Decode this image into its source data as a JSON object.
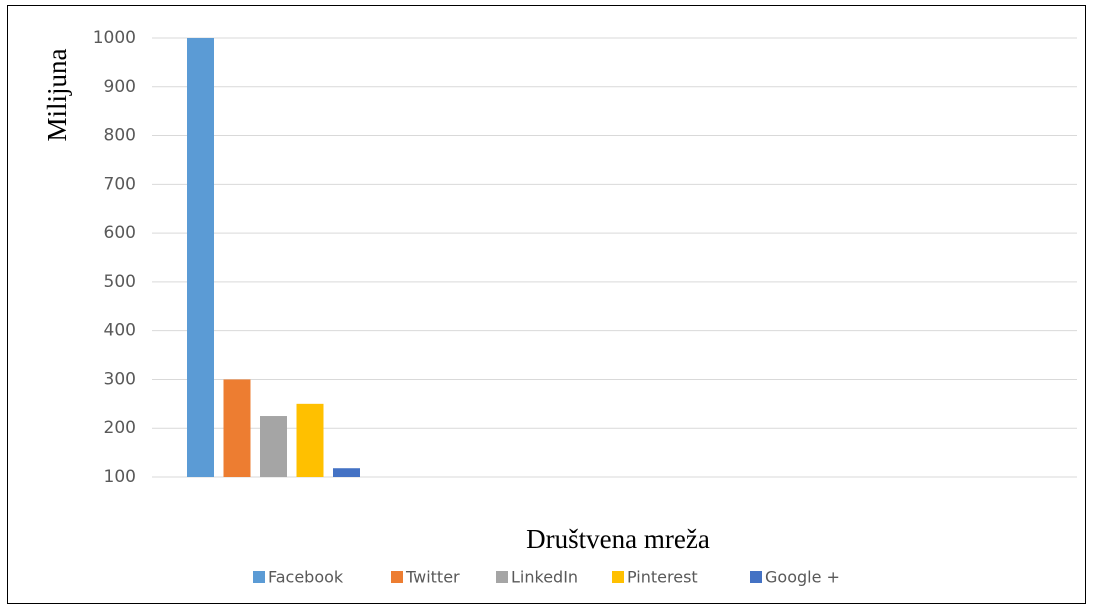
{
  "chart_data": {
    "type": "bar",
    "x_label": "Društvena mreža",
    "y_label": "Milijuna",
    "categories": [
      null
    ],
    "series": [
      {
        "name": "Facebook",
        "color": "#5b9bd5",
        "values": [
          1000
        ]
      },
      {
        "name": "Twitter",
        "color": "#ed7d31",
        "values": [
          300
        ]
      },
      {
        "name": "LinkedIn",
        "color": "#a5a5a5",
        "values": [
          225
        ]
      },
      {
        "name": "Pinterest",
        "color": "#ffc000",
        "values": [
          250
        ]
      },
      {
        "name": "Google +",
        "color": "#4472c4",
        "values": [
          118
        ]
      }
    ],
    "ylim": [
      100,
      1000
    ],
    "yticks": [
      100,
      200,
      300,
      400,
      500,
      600,
      700,
      800,
      900,
      1000
    ],
    "grid": true,
    "legend": "bottom"
  }
}
